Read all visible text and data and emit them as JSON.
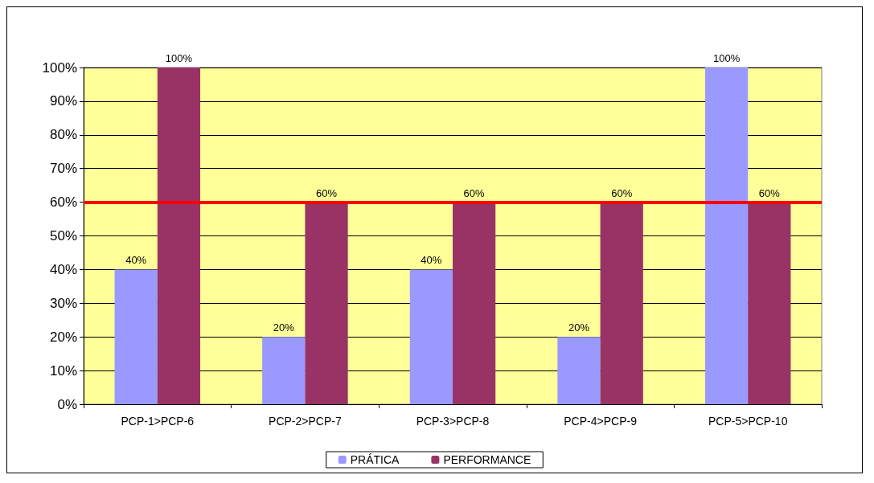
{
  "chart_data": {
    "type": "bar",
    "categories": [
      "PCP-1>PCP-6",
      "PCP-2>PCP-7",
      "PCP-3>PCP-8",
      "PCP-4>PCP-9",
      "PCP-5>PCP-10"
    ],
    "series": [
      {
        "name": "PRÁTICA",
        "color": "#9999ff",
        "values": [
          40,
          20,
          40,
          20,
          100
        ],
        "value_labels": [
          "40%",
          "20%",
          "40%",
          "20%",
          "100%"
        ]
      },
      {
        "name": "PERFORMANCE",
        "color": "#993366",
        "values": [
          100,
          60,
          60,
          60,
          60
        ],
        "value_labels": [
          "100%",
          "60%",
          "60%",
          "60%",
          "60%"
        ]
      }
    ],
    "ylim": [
      0,
      100
    ],
    "yticks": [
      {
        "value": 0,
        "label": "0%"
      },
      {
        "value": 10,
        "label": "10%"
      },
      {
        "value": 20,
        "label": "20%"
      },
      {
        "value": 30,
        "label": "30%"
      },
      {
        "value": 40,
        "label": "40%"
      },
      {
        "value": 50,
        "label": "50%"
      },
      {
        "value": 60,
        "label": "60%"
      },
      {
        "value": 70,
        "label": "70%"
      },
      {
        "value": 80,
        "label": "80%"
      },
      {
        "value": 90,
        "label": "90%"
      },
      {
        "value": 100,
        "label": "100%"
      }
    ],
    "grid": "y",
    "legend": "bottom",
    "ref_lines": [
      {
        "axis": "y",
        "value": 60,
        "color": "#ff0000"
      }
    ]
  }
}
